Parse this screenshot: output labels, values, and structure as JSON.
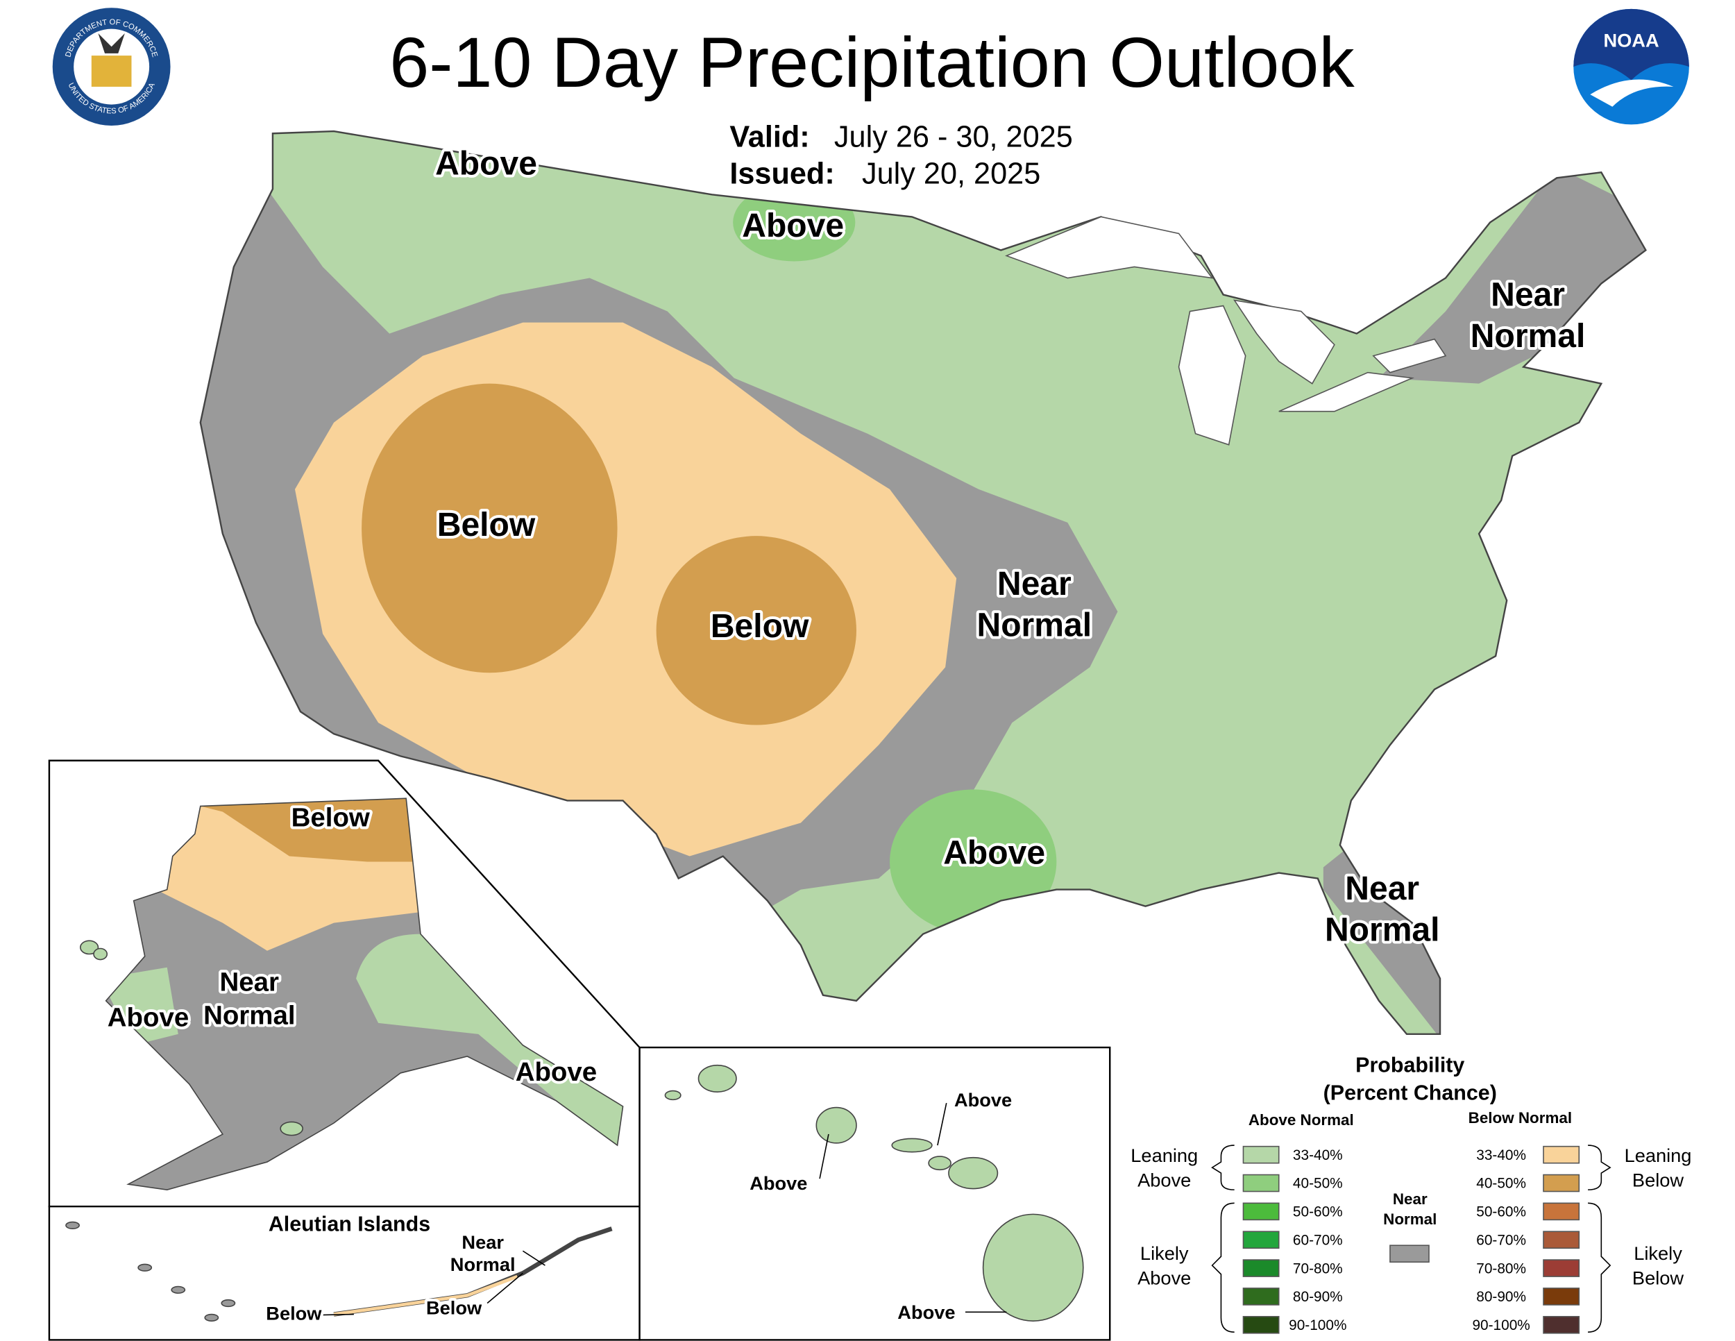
{
  "title": "6-10 Day Precipitation Outlook",
  "valid": {
    "label": "Valid:",
    "dates": "July 26 - 30, 2025"
  },
  "issued": {
    "label": "Issued:",
    "date": "July 20, 2025"
  },
  "logos": {
    "noaa": "NOAA",
    "doc_top": "DEPARTMENT OF COMMERCE",
    "doc_bottom": "UNITED STATES OF AMERICA"
  },
  "map_labels": [
    {
      "lines": [
        "Above"
      ]
    },
    {
      "lines": [
        "Above"
      ]
    },
    {
      "lines": [
        "Below"
      ]
    },
    {
      "lines": [
        "Below"
      ]
    },
    {
      "lines": [
        "Near",
        "Normal"
      ]
    },
    {
      "lines": [
        "Near",
        "Normal"
      ]
    },
    {
      "lines": [
        "Above"
      ]
    },
    {
      "lines": [
        "Near",
        "Normal"
      ]
    },
    {
      "lines": [
        "Below"
      ]
    },
    {
      "lines": [
        "Near",
        "Normal"
      ]
    },
    {
      "lines": [
        "Above"
      ]
    },
    {
      "lines": [
        "Above"
      ]
    },
    {
      "lines": [
        "Above"
      ]
    },
    {
      "lines": [
        "Above"
      ]
    },
    {
      "lines": [
        "Above"
      ]
    },
    {
      "lines": [
        "Near",
        "Normal"
      ]
    },
    {
      "lines": [
        "Below"
      ]
    },
    {
      "lines": [
        "Below"
      ]
    }
  ],
  "inset_title": "Aleutian Islands",
  "legend": {
    "title": [
      "Probability",
      "(Percent Chance)"
    ],
    "above_header": "Above Normal",
    "below_header": "Below Normal",
    "near": {
      "lines": [
        "Near",
        "Normal"
      ],
      "color": "#9a9a9a"
    },
    "above": [
      {
        "range": "33-40%",
        "color": "#b5d7a8"
      },
      {
        "range": "40-50%",
        "color": "#8fce7e"
      },
      {
        "range": "50-60%",
        "color": "#4cbb3c"
      },
      {
        "range": "60-70%",
        "color": "#23a63c"
      },
      {
        "range": "70-80%",
        "color": "#1b8a2a"
      },
      {
        "range": "80-90%",
        "color": "#2f6c1e"
      },
      {
        "range": "90-100%",
        "color": "#264a12"
      }
    ],
    "below": [
      {
        "range": "33-40%",
        "color": "#f9d39a"
      },
      {
        "range": "40-50%",
        "color": "#d39e4f"
      },
      {
        "range": "50-60%",
        "color": "#c8743b"
      },
      {
        "range": "60-70%",
        "color": "#aa5a38"
      },
      {
        "range": "70-80%",
        "color": "#9c3d35"
      },
      {
        "range": "80-90%",
        "color": "#7a3b0b"
      },
      {
        "range": "90-100%",
        "color": "#4f2f2e"
      }
    ],
    "groups": [
      {
        "lines": [
          "Leaning",
          "Above"
        ]
      },
      {
        "lines": [
          "Likely",
          "Above"
        ]
      },
      {
        "lines": [
          "Leaning",
          "Below"
        ]
      },
      {
        "lines": [
          "Likely",
          "Below"
        ]
      }
    ]
  }
}
